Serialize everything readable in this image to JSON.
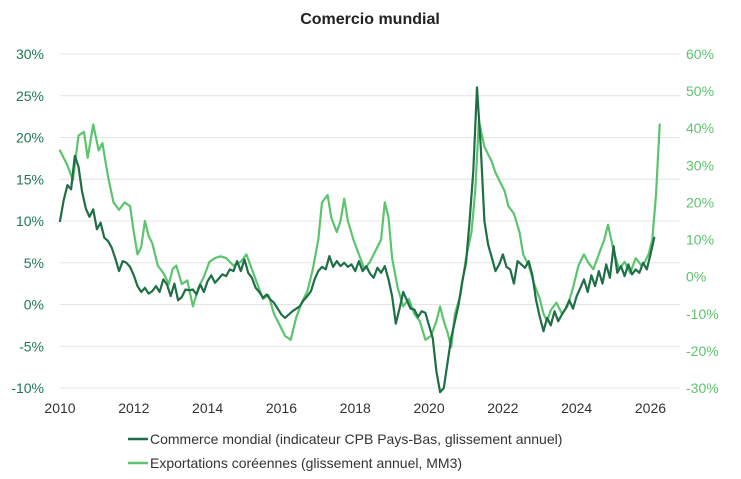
{
  "chart_data": {
    "type": "line",
    "title": "Comercio mundial",
    "x_ticks": [
      "2010",
      "2012",
      "2014",
      "2016",
      "2018",
      "2020",
      "2022",
      "2024",
      "2026"
    ],
    "xlim": [
      2010,
      2026.8
    ],
    "y_left": {
      "lim": [
        -10,
        30
      ],
      "ticks": [
        "-10%",
        "-5%",
        "0%",
        "5%",
        "10%",
        "15%",
        "20%",
        "25%",
        "30%"
      ],
      "color": "#1e7a4f"
    },
    "y_right": {
      "lim": [
        -30,
        60
      ],
      "ticks": [
        "-30%",
        "-20%",
        "-10%",
        "0%",
        "10%",
        "20%",
        "30%",
        "40%",
        "50%",
        "60%"
      ],
      "color": "#5cc46e"
    },
    "grid": true,
    "legend_position": "bottom",
    "series": [
      {
        "name": "Commerce mondial (indicateur CPB Pays-Bas, glissement annuel)",
        "axis": "left",
        "color": "#1e6e46",
        "points": [
          [
            2010.0,
            10
          ],
          [
            2010.1,
            12.5
          ],
          [
            2010.2,
            14.3
          ],
          [
            2010.3,
            13.8
          ],
          [
            2010.4,
            17.8
          ],
          [
            2010.5,
            16.5
          ],
          [
            2010.6,
            13.5
          ],
          [
            2010.7,
            11.5
          ],
          [
            2010.8,
            10.5
          ],
          [
            2010.9,
            11.4
          ],
          [
            2011.0,
            9
          ],
          [
            2011.1,
            9.8
          ],
          [
            2011.2,
            8
          ],
          [
            2011.3,
            7.6
          ],
          [
            2011.4,
            6.8
          ],
          [
            2011.5,
            5.5
          ],
          [
            2011.6,
            4
          ],
          [
            2011.7,
            5.2
          ],
          [
            2011.8,
            5
          ],
          [
            2011.9,
            4.5
          ],
          [
            2012.0,
            3.5
          ],
          [
            2012.1,
            2.2
          ],
          [
            2012.2,
            1.5
          ],
          [
            2012.3,
            2
          ],
          [
            2012.4,
            1.3
          ],
          [
            2012.5,
            1.6
          ],
          [
            2012.6,
            2.2
          ],
          [
            2012.7,
            1.5
          ],
          [
            2012.8,
            3
          ],
          [
            2012.9,
            2.4
          ],
          [
            2013.0,
            1
          ],
          [
            2013.1,
            2.5
          ],
          [
            2013.2,
            0.5
          ],
          [
            2013.3,
            0.9
          ],
          [
            2013.4,
            1.8
          ],
          [
            2013.5,
            1.7
          ],
          [
            2013.6,
            1.8
          ],
          [
            2013.7,
            1.2
          ],
          [
            2013.8,
            2.4
          ],
          [
            2013.9,
            1.5
          ],
          [
            2014.0,
            2.8
          ],
          [
            2014.1,
            3.5
          ],
          [
            2014.2,
            2.6
          ],
          [
            2014.3,
            3.1
          ],
          [
            2014.4,
            3.6
          ],
          [
            2014.5,
            3.4
          ],
          [
            2014.6,
            4.2
          ],
          [
            2014.7,
            4
          ],
          [
            2014.8,
            5.2
          ],
          [
            2014.9,
            4
          ],
          [
            2015.0,
            5.4
          ],
          [
            2015.1,
            3.8
          ],
          [
            2015.2,
            3.2
          ],
          [
            2015.3,
            2
          ],
          [
            2015.4,
            1.5
          ],
          [
            2015.5,
            0.8
          ],
          [
            2015.6,
            1.2
          ],
          [
            2015.7,
            0.6
          ],
          [
            2015.8,
            0.2
          ],
          [
            2015.9,
            -0.5
          ],
          [
            2016.0,
            -1.2
          ],
          [
            2016.1,
            -1.6
          ],
          [
            2016.2,
            -1.2
          ],
          [
            2016.3,
            -0.8
          ],
          [
            2016.4,
            -0.5
          ],
          [
            2016.5,
            -0.2
          ],
          [
            2016.6,
            0.5
          ],
          [
            2016.7,
            1
          ],
          [
            2016.8,
            1.6
          ],
          [
            2016.9,
            3
          ],
          [
            2017.0,
            4
          ],
          [
            2017.1,
            4.5
          ],
          [
            2017.2,
            4.2
          ],
          [
            2017.3,
            5.8
          ],
          [
            2017.4,
            4.5
          ],
          [
            2017.5,
            5.2
          ],
          [
            2017.6,
            4.6
          ],
          [
            2017.7,
            5
          ],
          [
            2017.8,
            4.5
          ],
          [
            2017.9,
            4.8
          ],
          [
            2018.0,
            4
          ],
          [
            2018.1,
            5.2
          ],
          [
            2018.2,
            4
          ],
          [
            2018.3,
            4.6
          ],
          [
            2018.4,
            3.7
          ],
          [
            2018.5,
            3.2
          ],
          [
            2018.6,
            4.4
          ],
          [
            2018.7,
            3.8
          ],
          [
            2018.8,
            4.6
          ],
          [
            2018.9,
            3
          ],
          [
            2019.0,
            1
          ],
          [
            2019.1,
            -2.3
          ],
          [
            2019.2,
            -0.5
          ],
          [
            2019.3,
            1.5
          ],
          [
            2019.4,
            0.5
          ],
          [
            2019.5,
            -0.5
          ],
          [
            2019.6,
            -0.6
          ],
          [
            2019.7,
            -1.5
          ],
          [
            2019.8,
            -0.8
          ],
          [
            2019.9,
            -1
          ],
          [
            2020.0,
            -2.5
          ],
          [
            2020.1,
            -4
          ],
          [
            2020.2,
            -8
          ],
          [
            2020.3,
            -10.5
          ],
          [
            2020.4,
            -10
          ],
          [
            2020.5,
            -7
          ],
          [
            2020.6,
            -4
          ],
          [
            2020.7,
            -2
          ],
          [
            2020.8,
            0
          ],
          [
            2020.9,
            2.8
          ],
          [
            2021.0,
            5
          ],
          [
            2021.1,
            10
          ],
          [
            2021.2,
            16
          ],
          [
            2021.3,
            26
          ],
          [
            2021.4,
            19
          ],
          [
            2021.5,
            10
          ],
          [
            2021.6,
            7.2
          ],
          [
            2021.7,
            5.6
          ],
          [
            2021.8,
            4
          ],
          [
            2021.9,
            4.8
          ],
          [
            2022.0,
            6
          ],
          [
            2022.1,
            4.5
          ],
          [
            2022.2,
            4.2
          ],
          [
            2022.3,
            2.5
          ],
          [
            2022.4,
            5.2
          ],
          [
            2022.5,
            4.8
          ],
          [
            2022.6,
            4.4
          ],
          [
            2022.7,
            5.2
          ],
          [
            2022.8,
            3.5
          ],
          [
            2022.9,
            0.5
          ],
          [
            2023.0,
            -1.5
          ],
          [
            2023.1,
            -3.2
          ],
          [
            2023.2,
            -1.6
          ],
          [
            2023.3,
            -2.5
          ],
          [
            2023.4,
            -0.8
          ],
          [
            2023.5,
            -2
          ],
          [
            2023.6,
            -1.2
          ],
          [
            2023.7,
            -0.5
          ],
          [
            2023.8,
            0.5
          ],
          [
            2023.9,
            -0.5
          ],
          [
            2024.0,
            1
          ],
          [
            2024.1,
            2
          ],
          [
            2024.2,
            3
          ],
          [
            2024.3,
            1.5
          ],
          [
            2024.4,
            3.5
          ],
          [
            2024.5,
            2.2
          ],
          [
            2024.6,
            4
          ],
          [
            2024.7,
            2.5
          ],
          [
            2024.8,
            4.8
          ],
          [
            2024.9,
            3.2
          ],
          [
            2025.0,
            7
          ],
          [
            2025.1,
            3.8
          ],
          [
            2025.2,
            4.6
          ],
          [
            2025.3,
            3.4
          ],
          [
            2025.4,
            4.8
          ],
          [
            2025.5,
            3.6
          ],
          [
            2025.6,
            4.2
          ],
          [
            2025.7,
            3.8
          ],
          [
            2025.8,
            5
          ],
          [
            2025.9,
            4.2
          ],
          [
            2026.0,
            6
          ],
          [
            2026.1,
            8
          ]
        ]
      },
      {
        "name": "Exportations coréennes (glissement annuel, MM3)",
        "axis": "right",
        "color": "#5cc46e",
        "points": [
          [
            2010.0,
            34
          ],
          [
            2010.2,
            30
          ],
          [
            2010.35,
            26
          ],
          [
            2010.5,
            38
          ],
          [
            2010.65,
            39
          ],
          [
            2010.75,
            32
          ],
          [
            2010.9,
            41
          ],
          [
            2011.05,
            34
          ],
          [
            2011.15,
            36
          ],
          [
            2011.3,
            27
          ],
          [
            2011.45,
            20
          ],
          [
            2011.6,
            18
          ],
          [
            2011.75,
            20
          ],
          [
            2011.9,
            19
          ],
          [
            2012.0,
            12
          ],
          [
            2012.1,
            6
          ],
          [
            2012.2,
            8
          ],
          [
            2012.3,
            15
          ],
          [
            2012.4,
            11
          ],
          [
            2012.5,
            9
          ],
          [
            2012.65,
            3
          ],
          [
            2012.8,
            1
          ],
          [
            2012.95,
            -2
          ],
          [
            2013.05,
            2
          ],
          [
            2013.15,
            3
          ],
          [
            2013.3,
            -2
          ],
          [
            2013.45,
            -1
          ],
          [
            2013.6,
            -8
          ],
          [
            2013.75,
            -3
          ],
          [
            2013.9,
            0
          ],
          [
            2014.05,
            4
          ],
          [
            2014.2,
            5
          ],
          [
            2014.35,
            5.5
          ],
          [
            2014.5,
            5
          ],
          [
            2014.7,
            3
          ],
          [
            2014.9,
            4
          ],
          [
            2015.05,
            6
          ],
          [
            2015.2,
            2
          ],
          [
            2015.35,
            -2
          ],
          [
            2015.5,
            -6
          ],
          [
            2015.65,
            -5
          ],
          [
            2015.8,
            -10
          ],
          [
            2015.95,
            -13
          ],
          [
            2016.1,
            -16
          ],
          [
            2016.25,
            -17
          ],
          [
            2016.4,
            -11
          ],
          [
            2016.55,
            -7
          ],
          [
            2016.7,
            -4
          ],
          [
            2016.85,
            2
          ],
          [
            2017.0,
            10
          ],
          [
            2017.1,
            20
          ],
          [
            2017.25,
            22
          ],
          [
            2017.35,
            16
          ],
          [
            2017.5,
            12
          ],
          [
            2017.6,
            15
          ],
          [
            2017.7,
            21
          ],
          [
            2017.8,
            15
          ],
          [
            2017.95,
            10
          ],
          [
            2018.1,
            6
          ],
          [
            2018.25,
            2
          ],
          [
            2018.4,
            4
          ],
          [
            2018.55,
            7
          ],
          [
            2018.7,
            10
          ],
          [
            2018.8,
            20
          ],
          [
            2018.9,
            16
          ],
          [
            2019.0,
            5
          ],
          [
            2019.15,
            -3
          ],
          [
            2019.3,
            -8
          ],
          [
            2019.45,
            -6
          ],
          [
            2019.6,
            -10
          ],
          [
            2019.75,
            -12
          ],
          [
            2019.9,
            -17
          ],
          [
            2020.05,
            -16
          ],
          [
            2020.2,
            -12
          ],
          [
            2020.3,
            -8
          ],
          [
            2020.4,
            -12
          ],
          [
            2020.5,
            -15
          ],
          [
            2020.6,
            -19
          ],
          [
            2020.7,
            -10
          ],
          [
            2020.85,
            -5
          ],
          [
            2021.0,
            5
          ],
          [
            2021.15,
            12
          ],
          [
            2021.25,
            23
          ],
          [
            2021.35,
            42
          ],
          [
            2021.5,
            35
          ],
          [
            2021.6,
            33
          ],
          [
            2021.7,
            31
          ],
          [
            2021.8,
            28
          ],
          [
            2021.95,
            25
          ],
          [
            2022.05,
            23
          ],
          [
            2022.15,
            19
          ],
          [
            2022.3,
            17
          ],
          [
            2022.45,
            12
          ],
          [
            2022.55,
            6
          ],
          [
            2022.7,
            3
          ],
          [
            2022.85,
            -2
          ],
          [
            2023.0,
            -6
          ],
          [
            2023.1,
            -10
          ],
          [
            2023.2,
            -12
          ],
          [
            2023.3,
            -9
          ],
          [
            2023.45,
            -7
          ],
          [
            2023.6,
            -10
          ],
          [
            2023.75,
            -8
          ],
          [
            2023.9,
            -3
          ],
          [
            2024.05,
            3
          ],
          [
            2024.2,
            6
          ],
          [
            2024.3,
            4
          ],
          [
            2024.45,
            2
          ],
          [
            2024.6,
            6
          ],
          [
            2024.75,
            10
          ],
          [
            2024.85,
            14
          ],
          [
            2025.0,
            7
          ],
          [
            2025.15,
            2
          ],
          [
            2025.3,
            4
          ],
          [
            2025.45,
            1
          ],
          [
            2025.6,
            5
          ],
          [
            2025.75,
            3
          ],
          [
            2025.85,
            4
          ],
          [
            2025.95,
            6
          ],
          [
            2026.05,
            10
          ],
          [
            2026.15,
            22
          ],
          [
            2026.25,
            41
          ]
        ]
      }
    ]
  }
}
